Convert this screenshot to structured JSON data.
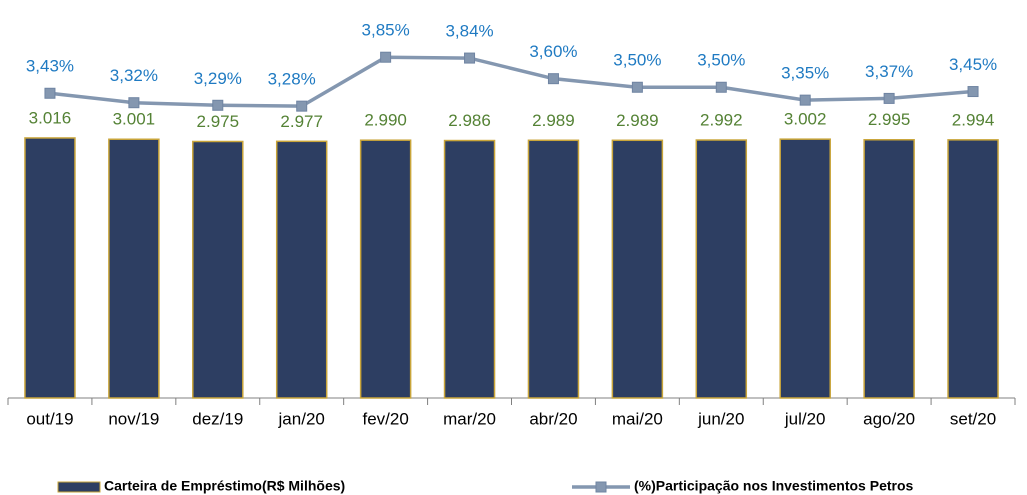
{
  "chart_data": {
    "type": "bar-line",
    "categories": [
      "out/19",
      "nov/19",
      "dez/19",
      "jan/20",
      "fev/20",
      "mar/20",
      "abr/20",
      "mai/20",
      "jun/20",
      "jul/20",
      "ago/20",
      "set/20"
    ],
    "series": [
      {
        "name": "Carteira de Empréstimo(R$ Milhões)",
        "type": "bar",
        "color": "#2d3e62",
        "edge_color": "#c9a53a",
        "label_color": "#548235",
        "values": [
          3016,
          3001,
          2975,
          2977,
          2990,
          2986,
          2989,
          2989,
          2992,
          3002,
          2995,
          2994
        ],
        "value_labels": [
          "3.016",
          "3.001",
          "2.975",
          "2.977",
          "2.990",
          "2.986",
          "2.989",
          "2.989",
          "2.992",
          "3.002",
          "2.995",
          "2.994"
        ]
      },
      {
        "name": "(%)Participação nos Investimentos Petros",
        "type": "line",
        "axis": "y2",
        "color": "#8497b0",
        "label_color": "#1f7ac2",
        "values": [
          3.43,
          3.32,
          3.29,
          3.28,
          3.85,
          3.84,
          3.6,
          3.5,
          3.5,
          3.35,
          3.37,
          3.45
        ],
        "value_labels": [
          "3,43%",
          "3,32%",
          "3,29%",
          "3,28%",
          "3,85%",
          "3,84%",
          "3,60%",
          "3,50%",
          "3,50%",
          "3,35%",
          "3,37%",
          "3,45%"
        ]
      }
    ],
    "ylim": [
      0,
      4500
    ],
    "y2lim": [
      -0.12,
      4.4
    ],
    "legend": "bottom"
  }
}
